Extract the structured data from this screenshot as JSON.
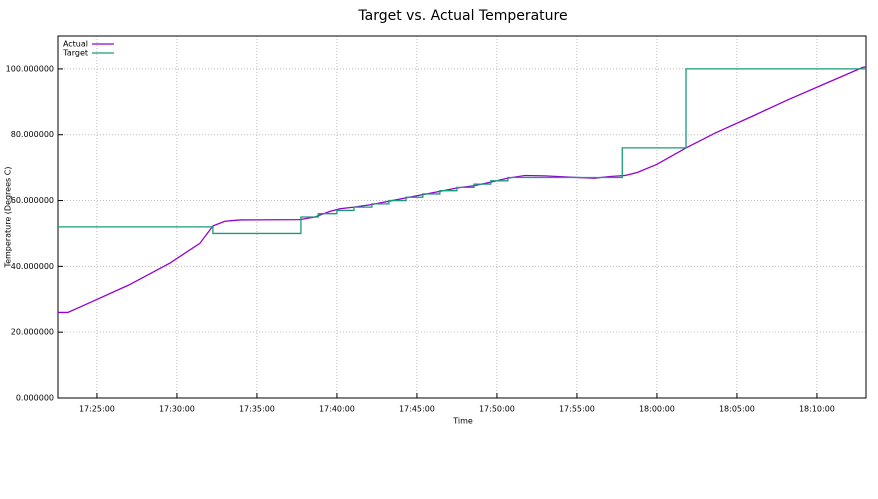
{
  "chart_data": {
    "type": "line",
    "title": "Target vs. Actual Temperature",
    "x_label": "Time",
    "y_label": "Temperature (Degrees C)",
    "xlim": [
      "17:22:34",
      "18:13:04"
    ],
    "xticks": [
      "17:25:00",
      "17:30:00",
      "17:35:00",
      "17:40:00",
      "17:45:00",
      "17:50:00",
      "17:55:00",
      "18:00:00",
      "18:05:00",
      "18:10:00"
    ],
    "ylim": [
      0,
      110
    ],
    "yticks": [
      {
        "value": 0,
        "label": "0.000000"
      },
      {
        "value": 20,
        "label": "20.000000"
      },
      {
        "value": 40,
        "label": "40.000000"
      },
      {
        "value": 60,
        "label": "60.000000"
      },
      {
        "value": 80,
        "label": "80.000000"
      },
      {
        "value": 100,
        "label": "100.000000"
      }
    ],
    "grid": true,
    "legend": "top-left",
    "series": [
      {
        "name": "Actual",
        "color": "#9400d3",
        "x": [
          "17:22:34",
          "17:23:11",
          "17:24:34",
          "17:27:04",
          "17:29:34",
          "17:31:26",
          "17:32:15",
          "17:33:00",
          "17:33:56",
          "17:37:41",
          "17:38:37",
          "17:39:34",
          "17:40:11",
          "17:41:04",
          "17:42:11",
          "17:43:15",
          "17:44:19",
          "17:45:22",
          "17:46:26",
          "17:47:30",
          "17:48:34",
          "17:49:37",
          "17:50:41",
          "17:51:45",
          "17:53:00",
          "17:54:34",
          "17:56:07",
          "17:57:04",
          "17:58:00",
          "17:58:45",
          "18:00:00",
          "18:01:49",
          "18:03:38",
          "18:06:08",
          "18:08:08",
          "18:10:30",
          "18:12:53",
          "18:13:04"
        ],
        "values": [
          26,
          26,
          29,
          34.5,
          41,
          47,
          52.3,
          53.7,
          54.1,
          54.2,
          55,
          56.7,
          57.5,
          58,
          58.8,
          59.8,
          60.8,
          61.8,
          62.8,
          63.8,
          64.5,
          65.6,
          66.8,
          67.6,
          67.5,
          67.1,
          66.8,
          67.3,
          67.6,
          68.5,
          71,
          76,
          80.5,
          86,
          90.5,
          95.5,
          100.5,
          100.6
        ]
      },
      {
        "name": "Target",
        "color": "#1a9a7a",
        "x": [
          "17:22:34",
          "17:32:15",
          "17:32:15",
          "17:37:45",
          "17:37:45",
          "17:38:50",
          "17:38:50",
          "17:40:00",
          "17:40:00",
          "17:41:04",
          "17:41:04",
          "17:42:11",
          "17:42:11",
          "17:43:15",
          "17:43:15",
          "17:44:19",
          "17:44:19",
          "17:45:22",
          "17:45:22",
          "17:46:26",
          "17:46:26",
          "17:47:30",
          "17:47:30",
          "17:48:34",
          "17:48:34",
          "17:49:37",
          "17:49:37",
          "17:50:41",
          "17:50:41",
          "17:57:50",
          "17:57:50",
          "18:01:49",
          "18:01:49",
          "18:13:04"
        ],
        "values": [
          52,
          52,
          50,
          50,
          55,
          55,
          56,
          56,
          57,
          57,
          58,
          58,
          59,
          59,
          60,
          60,
          61,
          61,
          62,
          62,
          63,
          63,
          64,
          64,
          65,
          65,
          66,
          66,
          67,
          67,
          76,
          76,
          100,
          100
        ]
      }
    ]
  }
}
